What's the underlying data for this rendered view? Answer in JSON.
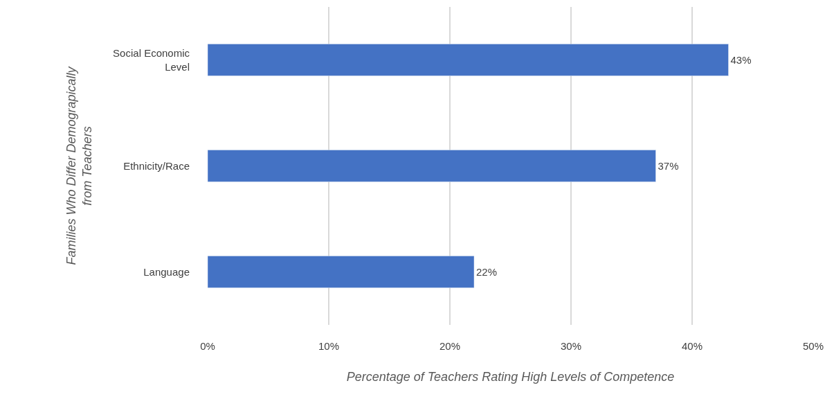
{
  "chart_data": {
    "type": "bar",
    "orientation": "horizontal",
    "categories": [
      "Social Economic Level",
      "Ethnicity/Race",
      "Language"
    ],
    "values": [
      43,
      37,
      22
    ],
    "value_labels": [
      "43%",
      "37%",
      "22%"
    ],
    "color": "#4472c4",
    "xlabel": "Percentage of Teachers Rating High Levels of Competence",
    "ylabel": "Families Who Differ Demograpically from Teachers",
    "xlim": [
      0,
      50
    ],
    "xticks": [
      {
        "value": 0,
        "label": "0%"
      },
      {
        "value": 10,
        "label": "10%"
      },
      {
        "value": 20,
        "label": "20%"
      },
      {
        "value": 30,
        "label": "30%"
      },
      {
        "value": 40,
        "label": "40%"
      },
      {
        "value": 50,
        "label": "50%"
      }
    ],
    "grid": "x",
    "legend": false
  }
}
